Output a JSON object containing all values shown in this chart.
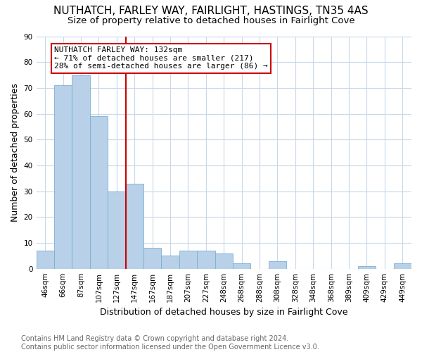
{
  "title": "NUTHATCH, FARLEY WAY, FAIRLIGHT, HASTINGS, TN35 4AS",
  "subtitle": "Size of property relative to detached houses in Fairlight Cove",
  "xlabel": "Distribution of detached houses by size in Fairlight Cove",
  "ylabel": "Number of detached properties",
  "categories": [
    "46sqm",
    "66sqm",
    "87sqm",
    "107sqm",
    "127sqm",
    "147sqm",
    "167sqm",
    "187sqm",
    "207sqm",
    "227sqm",
    "248sqm",
    "268sqm",
    "288sqm",
    "308sqm",
    "328sqm",
    "348sqm",
    "368sqm",
    "389sqm",
    "409sqm",
    "429sqm",
    "449sqm"
  ],
  "values": [
    7,
    71,
    75,
    59,
    30,
    33,
    8,
    5,
    7,
    7,
    6,
    2,
    0,
    3,
    0,
    0,
    0,
    0,
    1,
    0,
    2
  ],
  "bar_color": "#b8d0e8",
  "bar_edge_color": "#7aafd4",
  "property_label": "NUTHATCH FARLEY WAY: 132sqm",
  "annotation_line1": "← 71% of detached houses are smaller (217)",
  "annotation_line2": "28% of semi-detached houses are larger (86) →",
  "annotation_box_color": "#cc0000",
  "vline_color": "#cc0000",
  "vline_x_index": 4.5,
  "ylim": [
    0,
    90
  ],
  "yticks": [
    0,
    10,
    20,
    30,
    40,
    50,
    60,
    70,
    80,
    90
  ],
  "footer_line1": "Contains HM Land Registry data © Crown copyright and database right 2024.",
  "footer_line2": "Contains public sector information licensed under the Open Government Licence v3.0.",
  "bg_color": "#ffffff",
  "plot_bg_color": "#ffffff",
  "grid_color": "#c8d8e8",
  "title_fontsize": 11,
  "subtitle_fontsize": 9.5,
  "axis_label_fontsize": 9,
  "tick_fontsize": 7.5,
  "footer_fontsize": 7,
  "annot_fontsize": 8
}
